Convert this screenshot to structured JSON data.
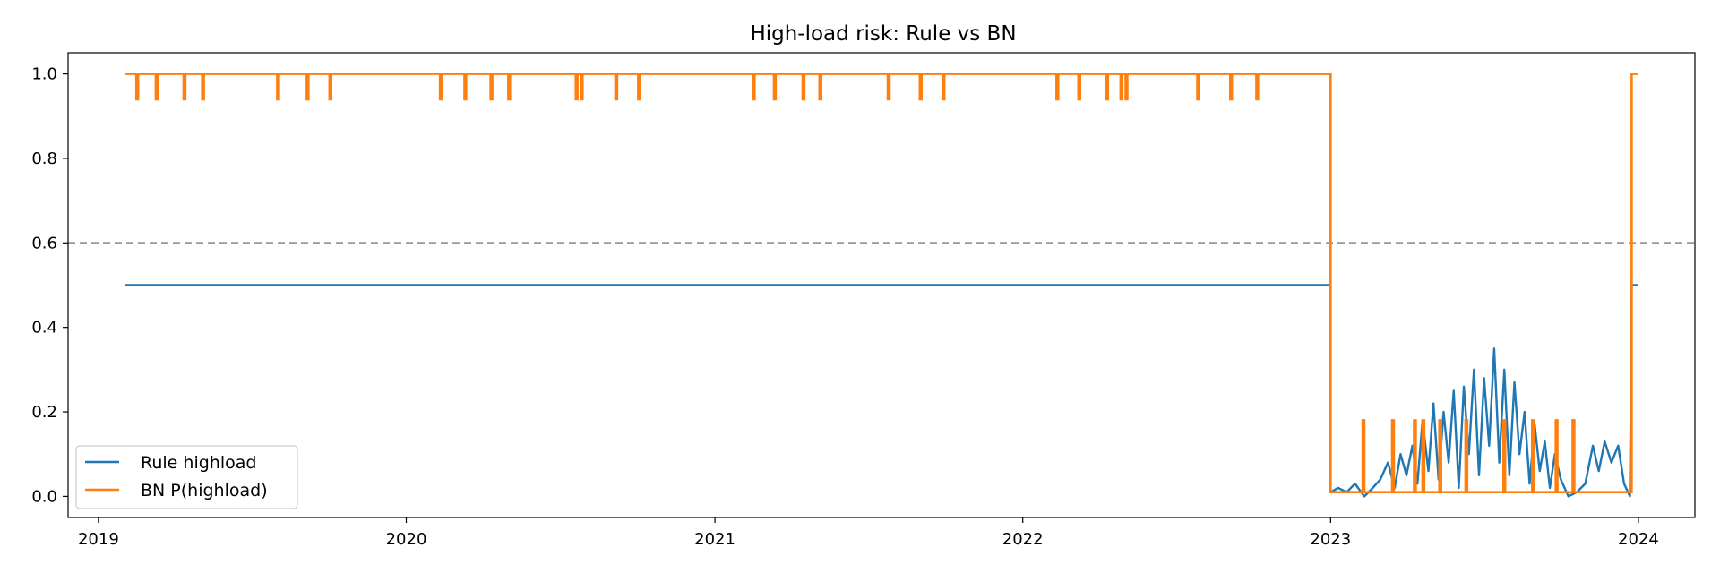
{
  "chart_data": {
    "type": "line",
    "title": "High-load risk: Rule vs BN",
    "xlabel": "",
    "ylabel": "",
    "x_ticks": [
      "2019",
      "2020",
      "2021",
      "2022",
      "2023",
      "2024"
    ],
    "y_ticks": [
      "0.0",
      "0.2",
      "0.4",
      "0.6",
      "0.8",
      "1.0"
    ],
    "xlim": [
      "2018-11-26",
      "2024-03-08"
    ],
    "ylim": [
      -0.05,
      1.05
    ],
    "grid": false,
    "legend_position": "lower-left",
    "threshold": {
      "value": 0.6,
      "style": "dashed",
      "color": "#999999"
    },
    "series": [
      {
        "name": "Rule highload",
        "color": "#1f77b4",
        "points": [
          [
            "2019-02-01",
            0.5
          ],
          [
            "2022-12-31",
            0.5
          ],
          [
            "2023-01-01",
            0.01
          ],
          [
            "2023-01-10",
            0.02
          ],
          [
            "2023-01-20",
            0.01
          ],
          [
            "2023-01-30",
            0.03
          ],
          [
            "2023-02-10",
            0.0
          ],
          [
            "2023-02-20",
            0.02
          ],
          [
            "2023-03-01",
            0.04
          ],
          [
            "2023-03-10",
            0.08
          ],
          [
            "2023-03-18",
            0.02
          ],
          [
            "2023-03-25",
            0.1
          ],
          [
            "2023-04-01",
            0.05
          ],
          [
            "2023-04-08",
            0.12
          ],
          [
            "2023-04-14",
            0.03
          ],
          [
            "2023-04-20",
            0.18
          ],
          [
            "2023-04-27",
            0.06
          ],
          [
            "2023-05-03",
            0.22
          ],
          [
            "2023-05-09",
            0.04
          ],
          [
            "2023-05-15",
            0.2
          ],
          [
            "2023-05-21",
            0.08
          ],
          [
            "2023-05-27",
            0.25
          ],
          [
            "2023-06-02",
            0.02
          ],
          [
            "2023-06-08",
            0.26
          ],
          [
            "2023-06-14",
            0.1
          ],
          [
            "2023-06-20",
            0.3
          ],
          [
            "2023-06-26",
            0.05
          ],
          [
            "2023-07-02",
            0.28
          ],
          [
            "2023-07-08",
            0.12
          ],
          [
            "2023-07-14",
            0.35
          ],
          [
            "2023-07-20",
            0.08
          ],
          [
            "2023-07-26",
            0.3
          ],
          [
            "2023-08-01",
            0.05
          ],
          [
            "2023-08-07",
            0.27
          ],
          [
            "2023-08-13",
            0.1
          ],
          [
            "2023-08-19",
            0.2
          ],
          [
            "2023-08-25",
            0.03
          ],
          [
            "2023-08-31",
            0.17
          ],
          [
            "2023-09-06",
            0.06
          ],
          [
            "2023-09-12",
            0.13
          ],
          [
            "2023-09-18",
            0.02
          ],
          [
            "2023-09-24",
            0.1
          ],
          [
            "2023-10-01",
            0.04
          ],
          [
            "2023-10-10",
            0.0
          ],
          [
            "2023-10-20",
            0.01
          ],
          [
            "2023-10-30",
            0.03
          ],
          [
            "2023-11-08",
            0.12
          ],
          [
            "2023-11-15",
            0.06
          ],
          [
            "2023-11-22",
            0.13
          ],
          [
            "2023-11-30",
            0.08
          ],
          [
            "2023-12-08",
            0.12
          ],
          [
            "2023-12-15",
            0.03
          ],
          [
            "2023-12-22",
            0.0
          ],
          [
            "2023-12-24",
            0.5
          ],
          [
            "2023-12-31",
            0.5
          ]
        ]
      },
      {
        "name": "BN P(highload)",
        "color": "#ff7f0e",
        "baseline": {
          "start": "2019-02-01",
          "end": "2022-12-31",
          "value": 1.0,
          "dip_value": 0.94,
          "dip_dates": [
            "2019-02-15",
            "2019-03-10",
            "2019-04-12",
            "2019-05-04",
            "2019-08-01",
            "2019-09-05",
            "2019-10-02",
            "2020-02-10",
            "2020-03-10",
            "2020-04-10",
            "2020-05-01",
            "2020-07-20",
            "2020-07-26",
            "2020-09-05",
            "2020-10-02",
            "2021-02-15",
            "2021-03-12",
            "2021-04-15",
            "2021-05-05",
            "2021-07-25",
            "2021-09-01",
            "2021-09-28",
            "2022-02-10",
            "2022-03-08",
            "2022-04-10",
            "2022-04-27",
            "2022-05-03",
            "2022-07-27",
            "2022-09-04",
            "2022-10-05"
          ]
        },
        "low_segment": {
          "start": "2023-01-01",
          "end": "2023-12-24",
          "value": 0.01,
          "spike_value": 0.18,
          "spike_dates": [
            "2023-02-08",
            "2023-03-15",
            "2023-04-10",
            "2023-04-20",
            "2023-05-10",
            "2023-06-10",
            "2023-07-25",
            "2023-08-28",
            "2023-09-25",
            "2023-10-15"
          ]
        },
        "tail": [
          [
            "2023-12-24",
            1.0
          ],
          [
            "2023-12-31",
            1.0
          ]
        ]
      }
    ]
  }
}
